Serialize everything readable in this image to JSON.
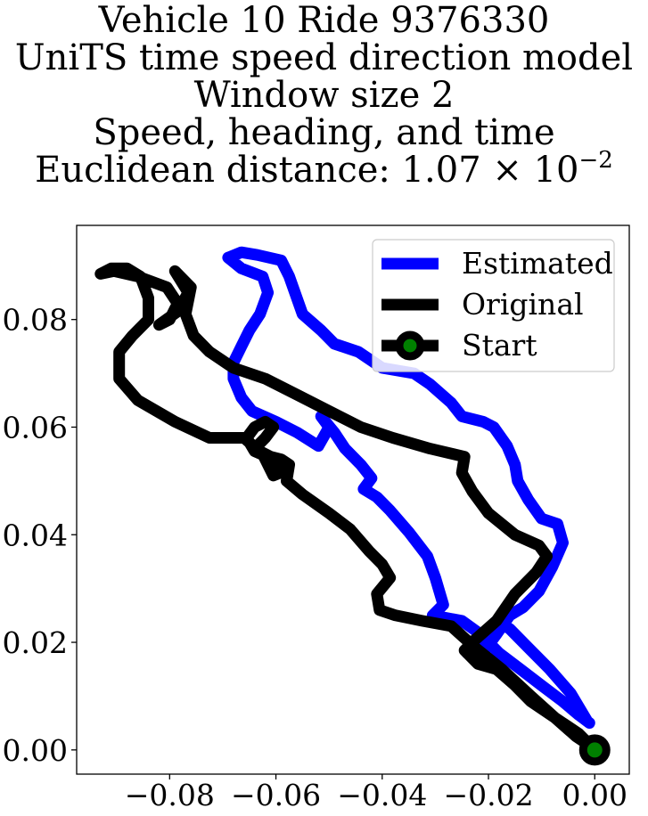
{
  "chart_data": {
    "type": "line",
    "title": [
      "Vehicle 10 Ride 9376330",
      "UniTS time speed direction model",
      "Window size 2",
      "Speed, heading, and time"
    ],
    "title_metric": {
      "prefix": "Euclidean distance: 1.07 × 10",
      "exponent": "−2"
    },
    "xlabel": "",
    "ylabel": "",
    "xlim": [
      -0.0975,
      0.0065
    ],
    "ylim": [
      -0.0045,
      0.0975
    ],
    "x_ticks": [
      -0.08,
      -0.06,
      -0.04,
      -0.02,
      0.0
    ],
    "x_tick_labels": [
      "−0.08",
      "−0.06",
      "−0.04",
      "−0.02",
      "0.00"
    ],
    "y_ticks": [
      0.0,
      0.02,
      0.04,
      0.06,
      0.08
    ],
    "y_tick_labels": [
      "0.00",
      "0.02",
      "0.04",
      "0.06",
      "0.08"
    ],
    "grid": false,
    "legend": {
      "position": "top-right",
      "entries": [
        "Estimated",
        "Original",
        "Start"
      ]
    },
    "series": [
      {
        "name": "Estimated",
        "color": "#0000ff",
        "points": [
          [
            -0.0015,
            0.0055
          ],
          [
            -0.0045,
            0.0105
          ],
          [
            -0.0085,
            0.015
          ],
          [
            -0.0125,
            0.019
          ],
          [
            -0.016,
            0.0225
          ],
          [
            -0.0185,
            0.024
          ],
          [
            -0.0205,
            0.022
          ],
          [
            -0.0225,
            0.0195
          ],
          [
            -0.024,
            0.018
          ],
          [
            -0.0215,
            0.0175
          ],
          [
            -0.0185,
            0.0215
          ],
          [
            -0.016,
            0.025
          ],
          [
            -0.0135,
            0.0265
          ],
          [
            -0.0105,
            0.0295
          ],
          [
            -0.008,
            0.034
          ],
          [
            -0.006,
            0.0385
          ],
          [
            -0.007,
            0.042
          ],
          [
            -0.01,
            0.043
          ],
          [
            -0.0125,
            0.0465
          ],
          [
            -0.0145,
            0.05
          ],
          [
            -0.015,
            0.053
          ],
          [
            -0.0165,
            0.0565
          ],
          [
            -0.019,
            0.06
          ],
          [
            -0.021,
            0.061
          ],
          [
            -0.025,
            0.062
          ],
          [
            -0.027,
            0.0645
          ],
          [
            -0.031,
            0.068
          ],
          [
            -0.034,
            0.07
          ],
          [
            -0.04,
            0.071
          ],
          [
            -0.0445,
            0.074
          ],
          [
            -0.049,
            0.0755
          ],
          [
            -0.0515,
            0.078
          ],
          [
            -0.055,
            0.081
          ],
          [
            -0.0575,
            0.088
          ],
          [
            -0.059,
            0.091
          ],
          [
            -0.0635,
            0.092
          ],
          [
            -0.0665,
            0.0925
          ],
          [
            -0.069,
            0.0915
          ],
          [
            -0.0665,
            0.0895
          ],
          [
            -0.0625,
            0.088
          ],
          [
            -0.0615,
            0.085
          ],
          [
            -0.063,
            0.081
          ],
          [
            -0.065,
            0.078
          ],
          [
            -0.0665,
            0.075
          ],
          [
            -0.068,
            0.072
          ],
          [
            -0.068,
            0.069
          ],
          [
            -0.0665,
            0.0655
          ],
          [
            -0.0645,
            0.063
          ],
          [
            -0.06,
            0.061
          ],
          [
            -0.056,
            0.059
          ],
          [
            -0.052,
            0.0565
          ],
          [
            -0.05,
            0.06
          ],
          [
            -0.0515,
            0.062
          ],
          [
            -0.049,
            0.059
          ],
          [
            -0.047,
            0.056
          ],
          [
            -0.044,
            0.053
          ],
          [
            -0.042,
            0.0505
          ],
          [
            -0.0435,
            0.0485
          ],
          [
            -0.041,
            0.047
          ],
          [
            -0.0385,
            0.0445
          ],
          [
            -0.035,
            0.0405
          ],
          [
            -0.0315,
            0.036
          ],
          [
            -0.03,
            0.032
          ],
          [
            -0.0285,
            0.027
          ],
          [
            -0.0305,
            0.025
          ],
          [
            -0.025,
            0.024
          ],
          [
            -0.0215,
            0.0215
          ],
          [
            -0.018,
            0.018
          ],
          [
            -0.014,
            0.015
          ],
          [
            -0.01,
            0.012
          ],
          [
            -0.006,
            0.009
          ],
          [
            -0.003,
            0.0065
          ],
          [
            -0.001,
            0.005
          ]
        ]
      },
      {
        "name": "Original",
        "color": "#000000",
        "points": [
          [
            0.0,
            0.0
          ],
          [
            -0.003,
            0.003
          ],
          [
            -0.0075,
            0.006
          ],
          [
            -0.012,
            0.01
          ],
          [
            -0.0175,
            0.015
          ],
          [
            -0.0225,
            0.019
          ],
          [
            -0.027,
            0.023
          ],
          [
            -0.0325,
            0.024
          ],
          [
            -0.0375,
            0.025
          ],
          [
            -0.0405,
            0.026
          ],
          [
            -0.041,
            0.029
          ],
          [
            -0.0385,
            0.032
          ],
          [
            -0.04,
            0.0345
          ],
          [
            -0.0425,
            0.037
          ],
          [
            -0.046,
            0.041
          ],
          [
            -0.05,
            0.044
          ],
          [
            -0.055,
            0.0475
          ],
          [
            -0.058,
            0.05
          ],
          [
            -0.0575,
            0.053
          ],
          [
            -0.059,
            0.054
          ],
          [
            -0.061,
            0.0545
          ],
          [
            -0.064,
            0.056
          ],
          [
            -0.062,
            0.058
          ],
          [
            -0.0605,
            0.06
          ],
          [
            -0.062,
            0.061
          ],
          [
            -0.064,
            0.06
          ],
          [
            -0.0655,
            0.058
          ],
          [
            -0.064,
            0.0555
          ],
          [
            -0.0605,
            0.054
          ],
          [
            -0.058,
            0.052
          ],
          [
            -0.0605,
            0.051
          ],
          [
            -0.0625,
            0.055
          ],
          [
            -0.066,
            0.058
          ],
          [
            -0.0725,
            0.058
          ],
          [
            -0.079,
            0.061
          ],
          [
            -0.086,
            0.065
          ],
          [
            -0.0895,
            0.069
          ],
          [
            -0.0895,
            0.074
          ],
          [
            -0.087,
            0.077
          ],
          [
            -0.084,
            0.08
          ],
          [
            -0.084,
            0.084
          ],
          [
            -0.0855,
            0.088
          ],
          [
            -0.088,
            0.0895
          ],
          [
            -0.091,
            0.0895
          ],
          [
            -0.093,
            0.0885
          ],
          [
            -0.0905,
            0.089
          ],
          [
            -0.086,
            0.088
          ],
          [
            -0.0805,
            0.086
          ],
          [
            -0.0785,
            0.083
          ],
          [
            -0.08,
            0.08
          ],
          [
            -0.082,
            0.079
          ],
          [
            -0.0785,
            0.0815
          ],
          [
            -0.0765,
            0.085
          ],
          [
            -0.079,
            0.089
          ],
          [
            -0.076,
            0.086
          ],
          [
            -0.077,
            0.081
          ],
          [
            -0.0755,
            0.077
          ],
          [
            -0.0725,
            0.074
          ],
          [
            -0.068,
            0.071
          ],
          [
            -0.062,
            0.069
          ],
          [
            -0.056,
            0.066
          ],
          [
            -0.05,
            0.063
          ],
          [
            -0.044,
            0.06
          ],
          [
            -0.038,
            0.058
          ],
          [
            -0.031,
            0.056
          ],
          [
            -0.0245,
            0.0545
          ],
          [
            -0.025,
            0.0515
          ],
          [
            -0.023,
            0.048
          ],
          [
            -0.02,
            0.044
          ],
          [
            -0.015,
            0.04
          ],
          [
            -0.0105,
            0.038
          ],
          [
            -0.009,
            0.036
          ],
          [
            -0.011,
            0.033
          ],
          [
            -0.015,
            0.029
          ],
          [
            -0.0185,
            0.024
          ],
          [
            -0.0225,
            0.0205
          ],
          [
            -0.0245,
            0.0185
          ],
          [
            -0.022,
            0.016
          ],
          [
            -0.0185,
            0.015
          ],
          [
            -0.015,
            0.012
          ],
          [
            -0.012,
            0.009
          ],
          [
            -0.0075,
            0.006
          ],
          [
            -0.0035,
            0.0025
          ],
          [
            -0.0005,
            0.0005
          ]
        ]
      }
    ],
    "start_point": {
      "name": "Start",
      "x": 0.0,
      "y": 0.0,
      "marker_color": "#008000",
      "edge_color": "#000000"
    }
  }
}
